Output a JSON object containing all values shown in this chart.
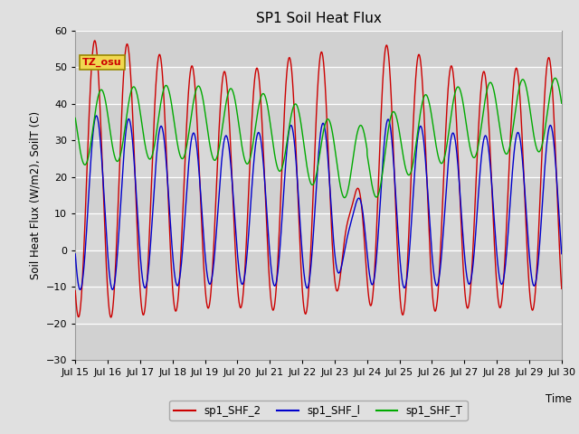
{
  "title": "SP1 Soil Heat Flux",
  "ylabel": "Soil Heat Flux (W/m2), SoilT (C)",
  "xlabel": "Time",
  "ylim": [
    -30,
    60
  ],
  "yticks": [
    -30,
    -20,
    -10,
    0,
    10,
    20,
    30,
    40,
    50,
    60
  ],
  "color_shf2": "#cc0000",
  "color_shf1": "#0000cc",
  "color_shft": "#00aa00",
  "tz_label": "TZ_osu",
  "legend_labels": [
    "sp1_SHF_2",
    "sp1_SHF_l",
    "sp1_SHF_T"
  ],
  "fig_bg": "#e0e0e0",
  "plot_bg": "#d8d8d8",
  "start_day": 15,
  "end_day": 30,
  "points_per_day": 144
}
